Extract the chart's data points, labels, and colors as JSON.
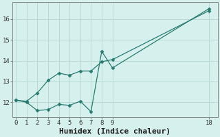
{
  "xlabel": "Humidex (Indice chaleur)",
  "background_color": "#d6f0ee",
  "grid_color": "#b8dbd8",
  "line_color": "#2a7a70",
  "line1_x": [
    0,
    1,
    2,
    3,
    4,
    5,
    6,
    7,
    8,
    9,
    18
  ],
  "line1_y": [
    12.1,
    12.0,
    11.6,
    11.65,
    11.9,
    11.85,
    12.05,
    11.55,
    14.45,
    13.65,
    16.5
  ],
  "line2_x": [
    0,
    1,
    2,
    3,
    4,
    5,
    6,
    7,
    8,
    9,
    18
  ],
  "line2_y": [
    12.1,
    12.05,
    12.45,
    13.05,
    13.4,
    13.3,
    13.5,
    13.5,
    13.95,
    14.05,
    16.4
  ],
  "xlim": [
    -0.3,
    18.8
  ],
  "ylim": [
    11.3,
    16.8
  ],
  "xticks": [
    0,
    1,
    2,
    3,
    4,
    5,
    6,
    7,
    8,
    9,
    18
  ],
  "yticks": [
    12,
    13,
    14,
    15,
    16
  ],
  "marker": "D",
  "marker_size": 2.5,
  "tick_fontsize": 6.5,
  "xlabel_fontsize": 8.0,
  "spine_color": "#888888",
  "tick_color": "#888888"
}
